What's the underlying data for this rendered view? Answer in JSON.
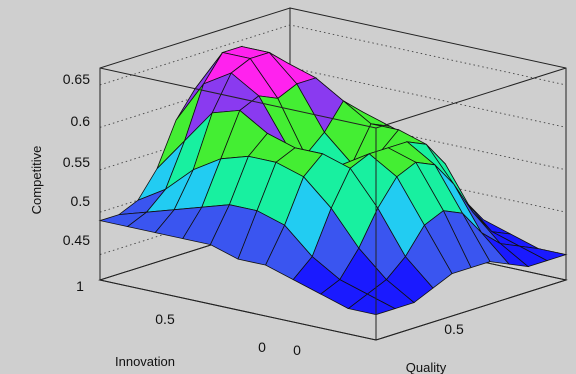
{
  "chart_data": {
    "type": "surface",
    "zlabel": "Competitive",
    "xlabel": "Quality",
    "ylabel": "Innovation",
    "zticks": [
      "0.65",
      "0.6",
      "0.55",
      "0.5",
      "0.45"
    ],
    "xticks": [
      "0",
      "0.5"
    ],
    "yticks": [
      "1",
      "0.5",
      "0"
    ],
    "xlim": [
      0,
      1
    ],
    "ylim": [
      0,
      1
    ],
    "zlim": [
      0.42,
      0.67
    ],
    "grid": true,
    "colormap": [
      "#1a1aff",
      "#3a55f0",
      "#22ccf2",
      "#18f0a0",
      "#44ee33",
      "#8a3af0",
      "#ff22ee"
    ],
    "surface_rows_innovation_0_to_1_by_0_1": [
      [
        0.45,
        0.45,
        0.45,
        0.46,
        0.47,
        0.47,
        0.47,
        0.46,
        0.45,
        0.45,
        0.45
      ],
      [
        0.45,
        0.46,
        0.47,
        0.49,
        0.52,
        0.53,
        0.52,
        0.49,
        0.47,
        0.46,
        0.45
      ],
      [
        0.46,
        0.47,
        0.5,
        0.54,
        0.57,
        0.58,
        0.57,
        0.54,
        0.5,
        0.47,
        0.46
      ],
      [
        0.47,
        0.49,
        0.54,
        0.58,
        0.59,
        0.59,
        0.59,
        0.58,
        0.55,
        0.5,
        0.47
      ],
      [
        0.48,
        0.52,
        0.57,
        0.59,
        0.57,
        0.55,
        0.57,
        0.59,
        0.57,
        0.52,
        0.48
      ],
      [
        0.48,
        0.53,
        0.58,
        0.59,
        0.55,
        0.52,
        0.55,
        0.59,
        0.58,
        0.53,
        0.48
      ],
      [
        0.49,
        0.53,
        0.58,
        0.6,
        0.58,
        0.56,
        0.58,
        0.61,
        0.59,
        0.54,
        0.49
      ],
      [
        0.49,
        0.52,
        0.57,
        0.62,
        0.63,
        0.62,
        0.63,
        0.63,
        0.6,
        0.54,
        0.49
      ],
      [
        0.49,
        0.51,
        0.55,
        0.61,
        0.65,
        0.66,
        0.66,
        0.64,
        0.59,
        0.53,
        0.49
      ],
      [
        0.49,
        0.5,
        0.52,
        0.57,
        0.63,
        0.66,
        0.66,
        0.62,
        0.56,
        0.51,
        0.49
      ],
      [
        0.49,
        0.49,
        0.5,
        0.53,
        0.58,
        0.61,
        0.61,
        0.58,
        0.53,
        0.5,
        0.49
      ]
    ]
  }
}
